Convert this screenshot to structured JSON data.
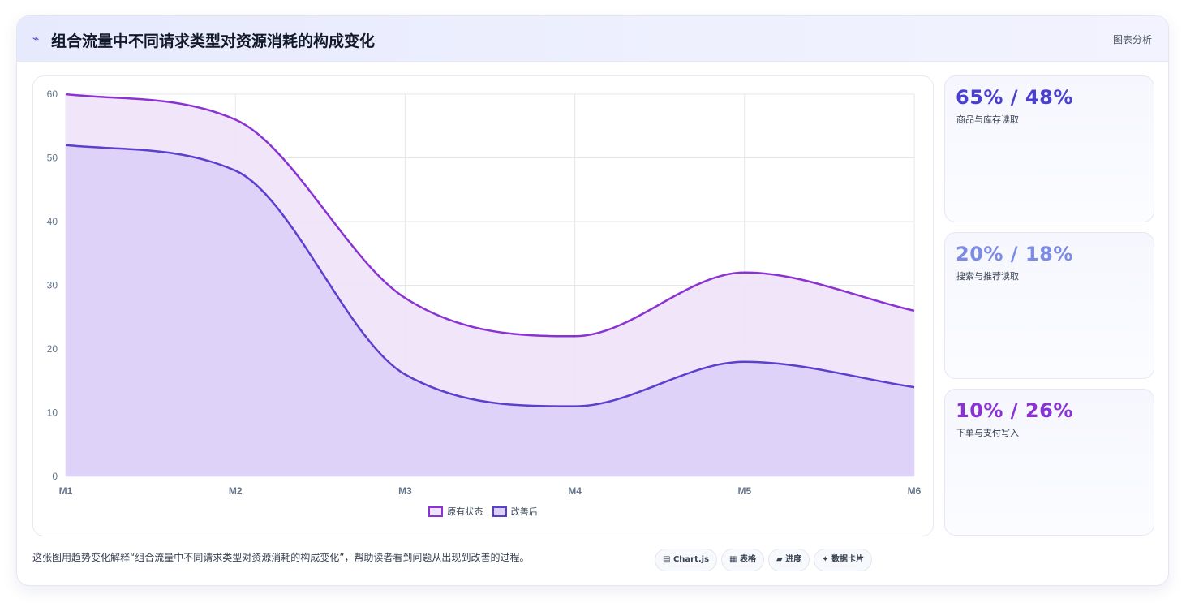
{
  "header": {
    "icon": "trend-icon",
    "title": "组合流量中不同请求类型对资源消耗的构成变化",
    "action_label": "图表分析"
  },
  "chart_data": {
    "type": "area",
    "categories": [
      "M1",
      "M2",
      "M3",
      "M4",
      "M5",
      "M6"
    ],
    "series": [
      {
        "name": "原有状态",
        "values": [
          60,
          56,
          28,
          22,
          32,
          26
        ],
        "color": "#8b32d4",
        "fill": "#efe2fa"
      },
      {
        "name": "改善后",
        "values": [
          52,
          48,
          16,
          11,
          18,
          14
        ],
        "color": "#5b3fcf",
        "fill": "#dccff8"
      }
    ],
    "ylim": [
      0,
      60
    ],
    "yticks": [
      0,
      10,
      20,
      30,
      40,
      50,
      60
    ],
    "grid": true,
    "legend_position": "bottom",
    "title": "",
    "xlabel": "",
    "ylabel": ""
  },
  "stats": [
    {
      "value": "65% / 48%",
      "label": "商品与库存读取",
      "color": "#4a3fcf"
    },
    {
      "value": "20% / 18%",
      "label": "搜索与推荐读取",
      "color": "#7c8be4"
    },
    {
      "value": "10% / 26%",
      "label": "下单与支付写入",
      "color": "#8b32d4"
    }
  ],
  "caption": "这张图用趋势变化解释“组合流量中不同请求类型对资源消耗的构成变化”，帮助读者看到问题从出现到改善的过程。",
  "chips": [
    {
      "icon": "chart-icon",
      "glyph": "▤",
      "label": "Chart.js"
    },
    {
      "icon": "table-icon",
      "glyph": "▦",
      "label": "表格"
    },
    {
      "icon": "progress-icon",
      "glyph": "▰",
      "label": "进度"
    },
    {
      "icon": "sparkle-icon",
      "glyph": "✦",
      "label": "数据卡片"
    }
  ]
}
